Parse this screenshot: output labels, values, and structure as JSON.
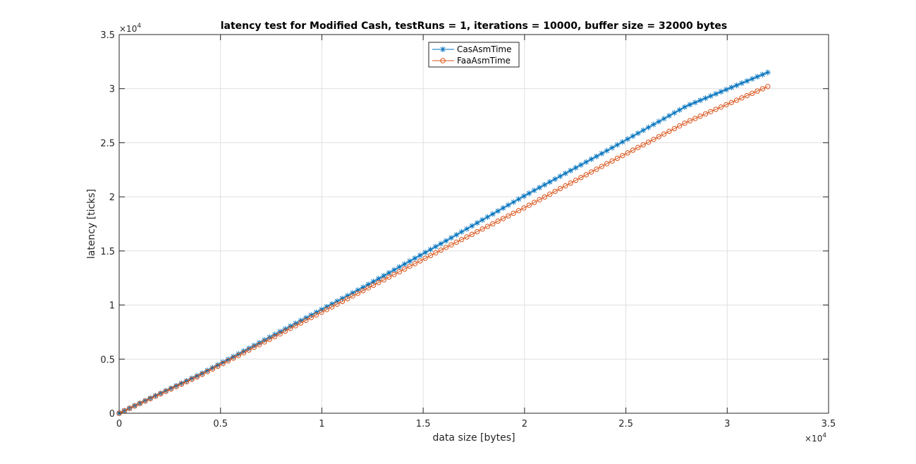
{
  "chart_data": {
    "type": "line",
    "title": "latency test for Modified Cash, testRuns = 1, iterations = 10000, buffer size = 32000 bytes",
    "xlabel": "data size [bytes]",
    "ylabel": "latency [ticks]",
    "xlim": [
      0,
      35000
    ],
    "ylim": [
      0,
      35000
    ],
    "x_ticks": [
      0,
      5000,
      10000,
      15000,
      20000,
      25000,
      30000,
      35000
    ],
    "y_ticks": [
      0,
      5000,
      10000,
      15000,
      20000,
      25000,
      30000,
      35000
    ],
    "x_tick_labels": [
      "0",
      "0.5",
      "1",
      "1.5",
      "2",
      "2.5",
      "3",
      "3.5"
    ],
    "y_tick_labels": [
      "0",
      "0.5",
      "1",
      "1.5",
      "2",
      "2.5",
      "3",
      "3.5"
    ],
    "x_exponent": "×10",
    "x_exponent_power": "4",
    "y_exponent": "×10",
    "y_exponent_power": "4",
    "grid": true,
    "legend": "top-center",
    "x": [
      0,
      4000,
      8000,
      12000,
      16000,
      20000,
      24000,
      28000,
      32000
    ],
    "series": [
      {
        "name": "CasAsmTime",
        "marker": "asterisk",
        "color": "#0072BD",
        "values": [
          0,
          3600,
          7600,
          11600,
          15800,
          20100,
          24200,
          28400,
          31500
        ]
      },
      {
        "name": "FaaAsmTime",
        "marker": "circle",
        "color": "#D95319",
        "values": [
          0,
          3500,
          7400,
          11300,
          15200,
          19000,
          23000,
          26900,
          30200
        ]
      }
    ]
  }
}
